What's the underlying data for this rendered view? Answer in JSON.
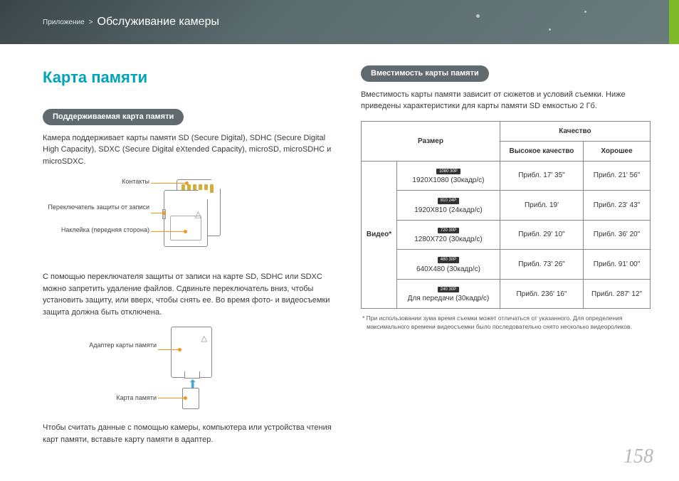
{
  "breadcrumb": {
    "small": "Приложение",
    "sep": ">",
    "large": "Обслуживание камеры"
  },
  "left": {
    "title": "Карта памяти",
    "pill": "Поддерживаемая карта памяти",
    "para1": "Камера поддерживает карты памяти SD (Secure Digital), SDHC (Secure Digital High Capacity), SDXC (Secure Digital eXtended Capacity), microSD, microSDHC и microSDXC.",
    "d1": {
      "contacts": "Контакты",
      "wp": "Переключатель защиты от записи",
      "label": "Наклейка (передняя сторона)"
    },
    "para2": "С помощью переключателя защиты от записи на карте SD, SDHC или SDXC можно запретить удаление файлов. Сдвиньте переключатель вниз, чтобы установить защиту, или вверх, чтобы снять ее. Во время фото- и видеосъемки защита должна быть отключена.",
    "d2": {
      "adapter": "Адаптер карты памяти",
      "card": "Карта памяти"
    },
    "para3": "Чтобы считать данные с помощью камеры, компьютера или устройства чтения карт памяти, вставьте карту памяти в адаптер."
  },
  "right": {
    "pill": "Вместимость карты памяти",
    "para1": "Вместимость карты памяти зависит от сюжетов и условий съемки. Ниже приведены характеристики для карты памяти SD емкостью 2 Гб.",
    "table": {
      "headers": {
        "size": "Размер",
        "quality": "Качество",
        "hq": "Высокое качество",
        "good": "Хорошее"
      },
      "category": "Видео*",
      "rows": [
        {
          "icon": "1080 30P",
          "res": "1920X1080 (30кадр/c)",
          "hq": "Прибл. 17' 35\"",
          "good": "Прибл. 21' 56\""
        },
        {
          "icon": "810 24P",
          "res": "1920X810 (24кадр/c)",
          "hq": "Прибл. 19'",
          "good": "Прибл. 23' 43\""
        },
        {
          "icon": "720 30P",
          "res": "1280X720 (30кадр/c)",
          "hq": "Прибл. 29' 10\"",
          "good": "Прибл. 36' 20\""
        },
        {
          "icon": "480 30P",
          "res": "640X480 (30кадр/c)",
          "hq": "Прибл. 73' 26\"",
          "good": "Прибл. 91' 00\""
        },
        {
          "icon": "240 30P",
          "res": "Для передачи (30кадр/c)",
          "hq": "Прибл. 236' 16\"",
          "good": "Прибл. 287' 12\""
        }
      ]
    },
    "footnote": "* При использовании зума время съемки может отличаться от указанного. Для определения максимального времени видеосъемки было последовательно снято несколько видеороликов."
  },
  "pagenum": "158"
}
